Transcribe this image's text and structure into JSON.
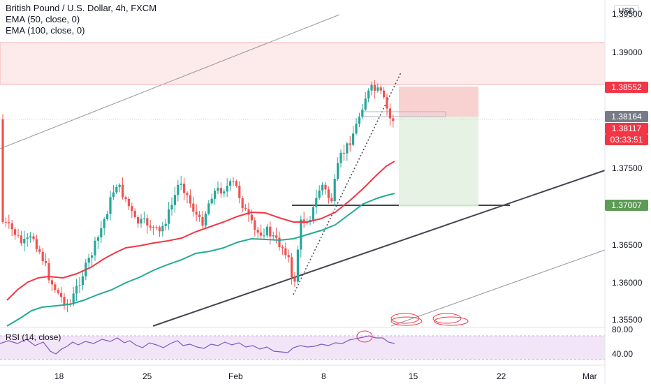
{
  "legend": {
    "title": "British Pound / U.S. Dollar, 4h, FXCM",
    "ema50": "EMA (50, close, 0)",
    "ema100": "EMA (100, close, 0)",
    "rsi": "RSI (14, close)"
  },
  "currency": "USD",
  "colors": {
    "up": "#26a69a",
    "down": "#ef5350",
    "ema50": "#f23645",
    "ema100": "#22ab94",
    "rsi_line": "#7e57c2",
    "rsi_band": "#f3e5f8"
  },
  "price_tags": {
    "resistance": {
      "value": "1.38552",
      "color": "#f23645"
    },
    "mid": {
      "value": "1.38164",
      "color": "#787b86"
    },
    "last": {
      "value": "1.38117",
      "color": "#f23645"
    },
    "countdown": {
      "value": "03:33:51",
      "color": "#f23645"
    },
    "support": {
      "value": "1.37007",
      "color": "#5d9b56"
    }
  },
  "chart_data": {
    "type": "candlestick",
    "yaxis_ticks": [
      "1.39500",
      "1.39000",
      "1.37500",
      "1.36500",
      "1.36000",
      "1.35500"
    ],
    "xaxis_ticks": [
      "18",
      "25",
      "Feb",
      "8",
      "15",
      "22",
      "Mar"
    ],
    "rsi_ticks": [
      "80.00",
      "40.00"
    ],
    "ylim": [
      1.3528,
      1.3986
    ],
    "resistance_zone": [
      1.3856,
      1.3915
    ],
    "support_level": 1.37007,
    "position": {
      "entry": 1.38164,
      "stop": 1.38552,
      "target": 1.37007
    }
  }
}
